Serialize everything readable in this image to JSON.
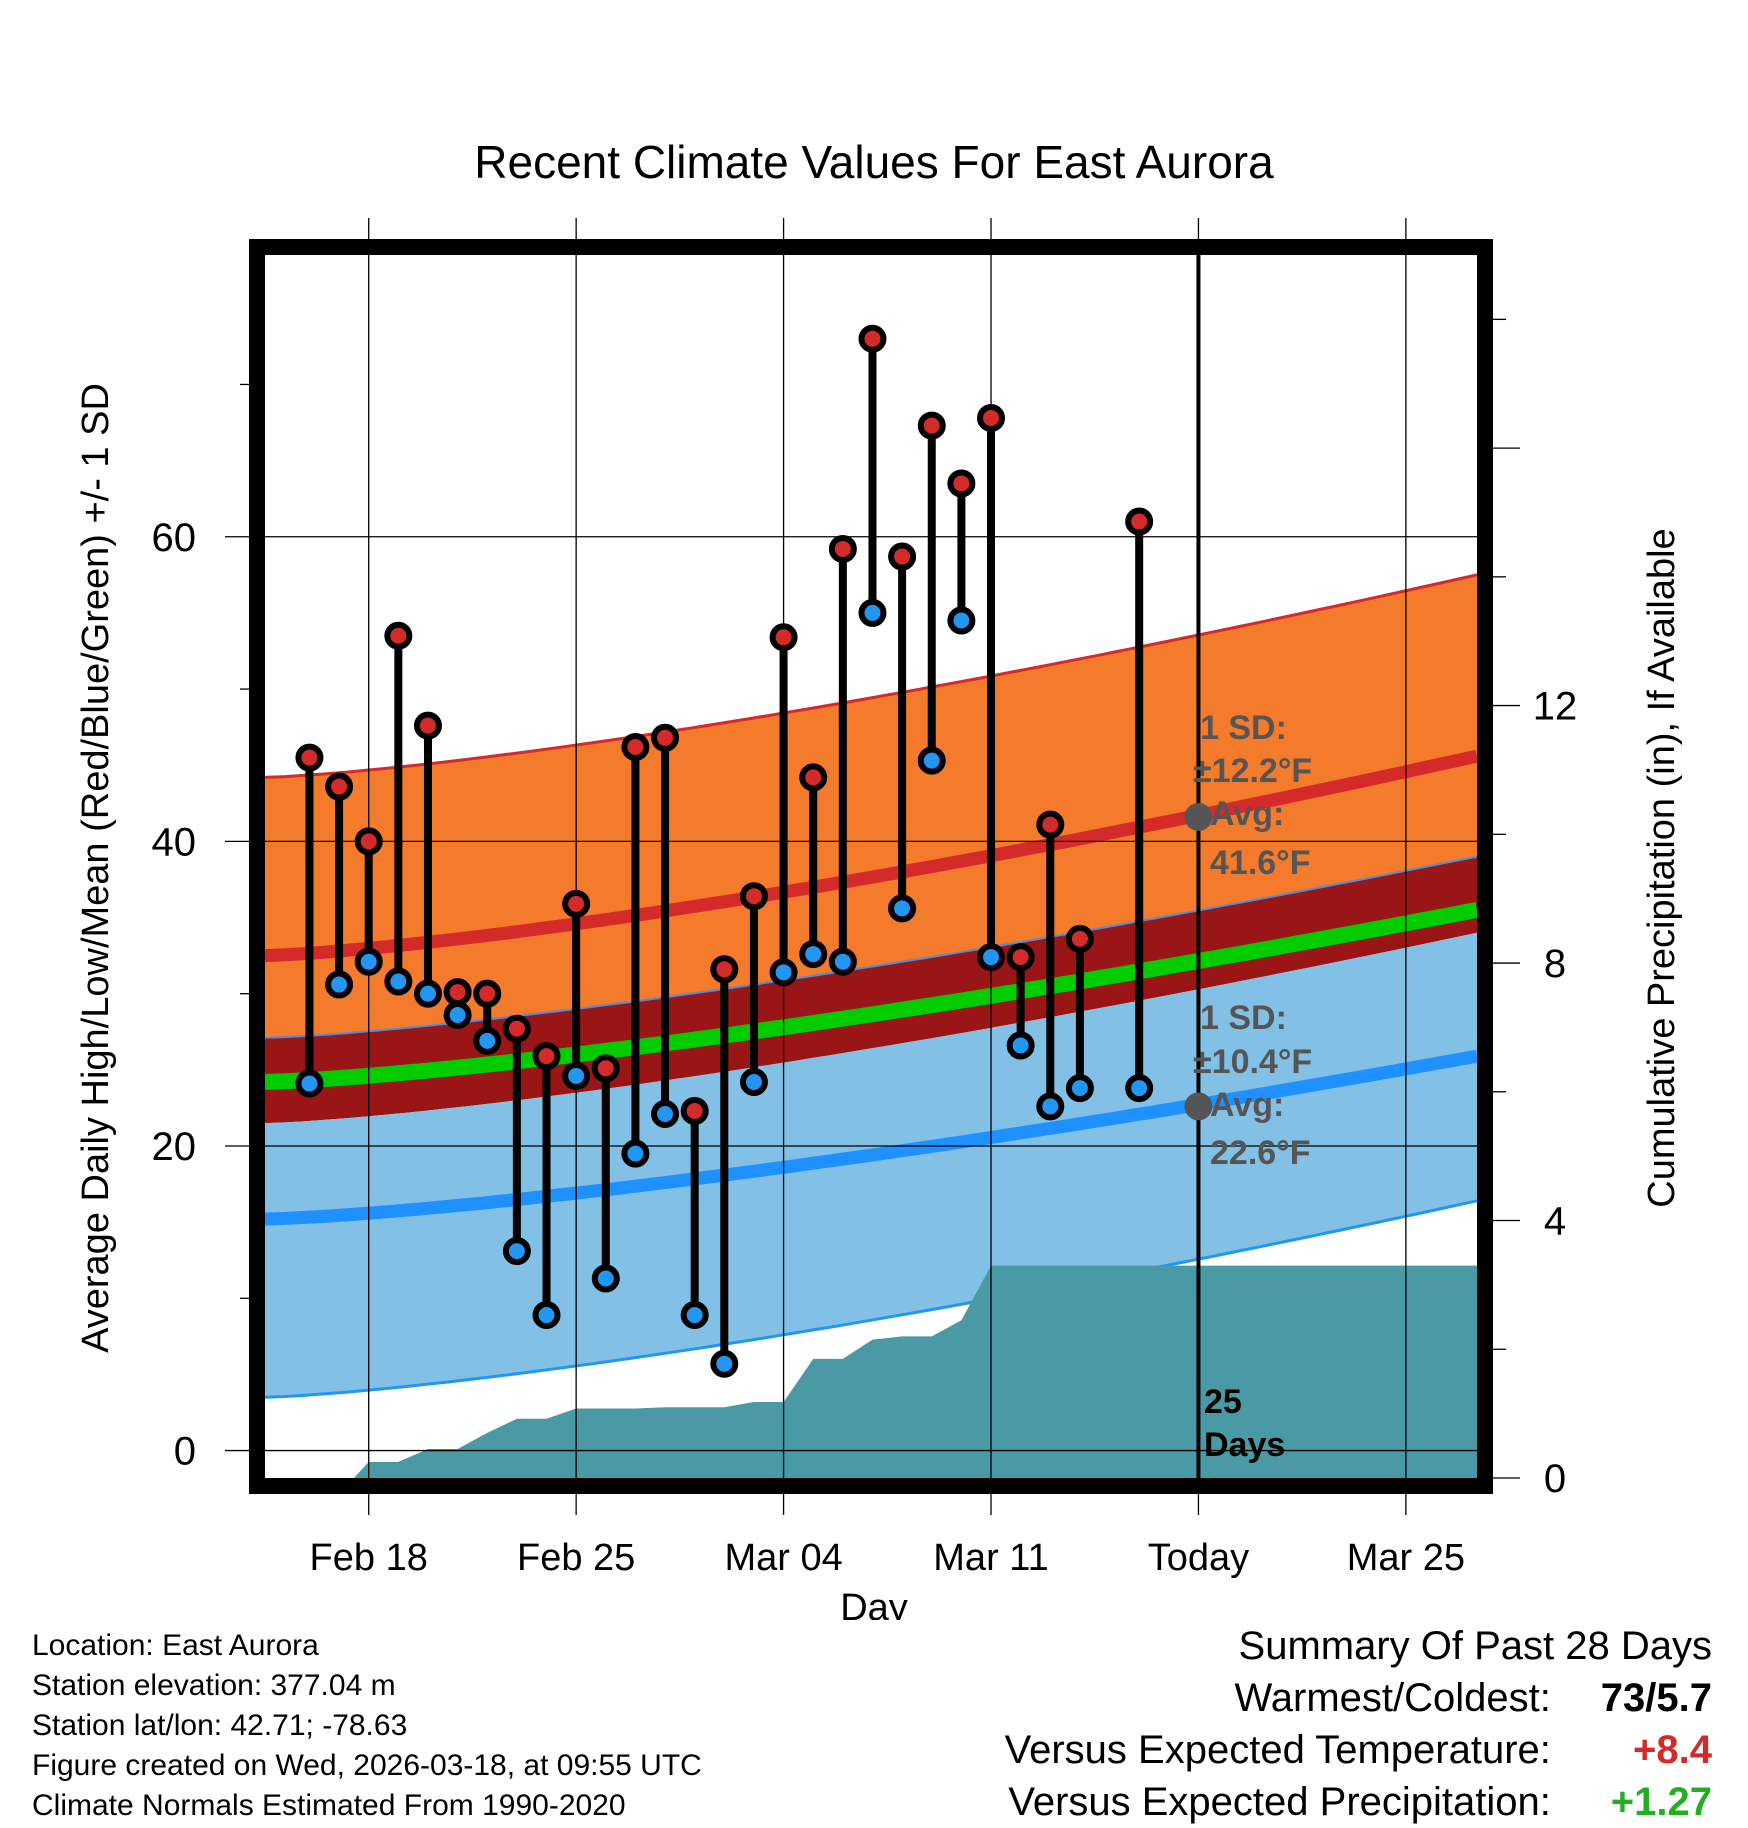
{
  "title": "Recent Climate Values For East Aurora",
  "chart_data": {
    "type": "line",
    "title": "Recent Climate Values For East Aurora",
    "xlabel": "Day",
    "ylabel_left": "Average Daily High/Low/Mean (Red/Blue/Green) +/- 1 SD",
    "ylabel_right": "Cumulative Precipitation (in), If Available",
    "x_tick_labels": [
      "Feb 18",
      "Feb 25",
      "Mar 04",
      "Mar 11",
      "Today",
      "Mar 25"
    ],
    "x_tick_days": [
      18,
      25,
      32,
      39,
      46,
      53
    ],
    "x_range_days": [
      14.5,
      55.4
    ],
    "ylim_left": [
      -1.8,
      78.5
    ],
    "ylim_right": [
      0,
      19
    ],
    "y_left_ticks": [
      0,
      20,
      40,
      60
    ],
    "y_right_ticks": [
      0,
      4,
      8,
      12
    ],
    "grid": true,
    "today_day": 46,
    "days_label_count": "25",
    "days_label_word": "Days",
    "normals": {
      "days": [
        14.5,
        55.4
      ],
      "high_mean": [
        32.5,
        45.6
      ],
      "high_upper": [
        44.2,
        57.5
      ],
      "low_mean": [
        15.2,
        25.9
      ],
      "low_upper": [
        27.1,
        39.0
      ],
      "low_lower": [
        3.5,
        16.4
      ],
      "mean_green": [
        24.2,
        35.5
      ],
      "dark_red_band_lower": [
        21.5,
        34.0
      ]
    },
    "high_annotation": {
      "sd": "1 SD:",
      "sd_value": "±12.2°F",
      "avg": "Avg:",
      "avg_value": "41.6°F",
      "value": 41.6
    },
    "low_annotation": {
      "sd": "1 SD:",
      "sd_value": "±10.4°F",
      "avg": "Avg:",
      "avg_value": "22.6°F",
      "value": 22.6
    },
    "series": [
      {
        "name": "Daily High",
        "color": "#d42a2a",
        "days": [
          16,
          17,
          18,
          19,
          20,
          21,
          22,
          23,
          24,
          25,
          26,
          27,
          28,
          29,
          30,
          31,
          32,
          33,
          34,
          35,
          36,
          37,
          38,
          39,
          40,
          41,
          42,
          44
        ],
        "values": [
          45.5,
          43.6,
          40.0,
          53.5,
          47.6,
          30.1,
          30.0,
          27.7,
          25.9,
          35.9,
          25.1,
          46.2,
          46.8,
          22.3,
          31.6,
          36.4,
          53.4,
          44.2,
          59.2,
          73.0,
          58.7,
          67.3,
          63.5,
          67.8,
          32.4,
          41.1,
          33.6,
          61.0
        ]
      },
      {
        "name": "Daily Low",
        "color": "#2196f3",
        "days": [
          16,
          17,
          18,
          19,
          20,
          21,
          22,
          23,
          24,
          25,
          26,
          27,
          28,
          29,
          30,
          31,
          32,
          33,
          34,
          35,
          36,
          37,
          38,
          39,
          40,
          41,
          42,
          44
        ],
        "values": [
          24.1,
          30.6,
          32.1,
          30.8,
          30.0,
          28.6,
          26.9,
          13.1,
          8.9,
          24.6,
          11.3,
          19.5,
          22.1,
          8.9,
          5.7,
          24.2,
          31.4,
          32.6,
          32.1,
          55.0,
          35.6,
          45.3,
          54.5,
          32.4,
          26.6,
          22.6,
          23.8,
          23.8
        ]
      },
      {
        "name": "Cumulative Precipitation",
        "color": "#4a9aa5",
        "days": [
          17.5,
          18,
          19,
          20,
          21,
          22,
          23,
          24,
          25,
          26,
          27,
          28,
          29,
          30,
          31,
          32,
          33,
          34,
          35,
          36,
          37,
          38,
          39,
          40,
          55.4
        ],
        "values": [
          0.0,
          0.25,
          0.25,
          0.45,
          0.45,
          0.7,
          0.92,
          0.92,
          1.08,
          1.08,
          1.08,
          1.1,
          1.1,
          1.1,
          1.18,
          1.18,
          1.85,
          1.85,
          2.15,
          2.2,
          2.2,
          2.45,
          3.3,
          3.3,
          3.3
        ]
      }
    ]
  },
  "meta": {
    "location": "Location: East Aurora",
    "elevation": "Station elevation: 377.04 m",
    "latlon": "Station lat/lon: 42.71; -78.63",
    "created": "Figure created on Wed, 2026-03-18, at 09:55 UTC",
    "normals": "Climate Normals Estimated From 1990-2020"
  },
  "summary": {
    "heading": "Summary Of Past 28 Days",
    "warmest_label": "Warmest/Coldest:",
    "warmest_value": "73/5.7",
    "temp_label": "Versus Expected Temperature:",
    "temp_value": "+8.4",
    "precip_label": "Versus Expected Precipitation:",
    "precip_value": "+1.27"
  }
}
